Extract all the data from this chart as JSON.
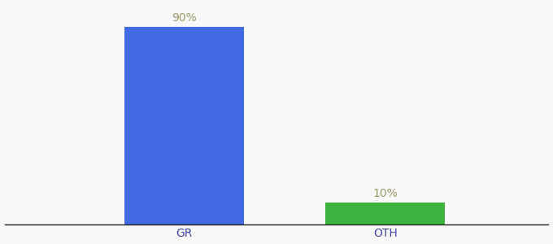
{
  "categories": [
    "GR",
    "OTH"
  ],
  "values": [
    90,
    10
  ],
  "bar_colors": [
    "#4169E1",
    "#3CB540"
  ],
  "bar_labels": [
    "90%",
    "10%"
  ],
  "ylim": [
    0,
    100
  ],
  "background_color": "#f9f9f9",
  "label_fontsize": 10,
  "tick_fontsize": 10,
  "label_color": "#999966",
  "tick_color": "#4444aa",
  "bar_positions": [
    0.33,
    0.7
  ],
  "bar_width": 0.22,
  "xlim": [
    0,
    1
  ]
}
